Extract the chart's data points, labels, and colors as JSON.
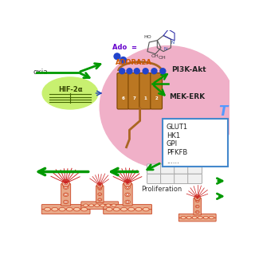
{
  "bg_color": "#ffffff",
  "cell_color": "#f0b0c8",
  "hif_ellipse_color": "#c8f070",
  "hif_text": "HIF-2α",
  "adora_text": "ADORA2A",
  "adora_color": "#cc5500",
  "ado_text": "Ado  =",
  "ado_color": "#6600cc",
  "pi3k_text": "PI3K-Akt",
  "mek_text": "MEK-ERK",
  "glut_box_text": [
    "GLUT1",
    "HK1",
    "GPI",
    "PFKFB",
    "......"
  ],
  "hypoxia_text": "oxia",
  "prolif_text": "Proliferation",
  "t_text": "T",
  "t_color": "#5599ff",
  "green_arrow_color": "#009900",
  "blue_dot_color": "#2244cc",
  "receptor_color": "#aa6622",
  "box_border_color": "#4488cc",
  "vessel_fill": "#e8a888",
  "vessel_edge": "#cc4422",
  "filo_color": "#cc2222"
}
